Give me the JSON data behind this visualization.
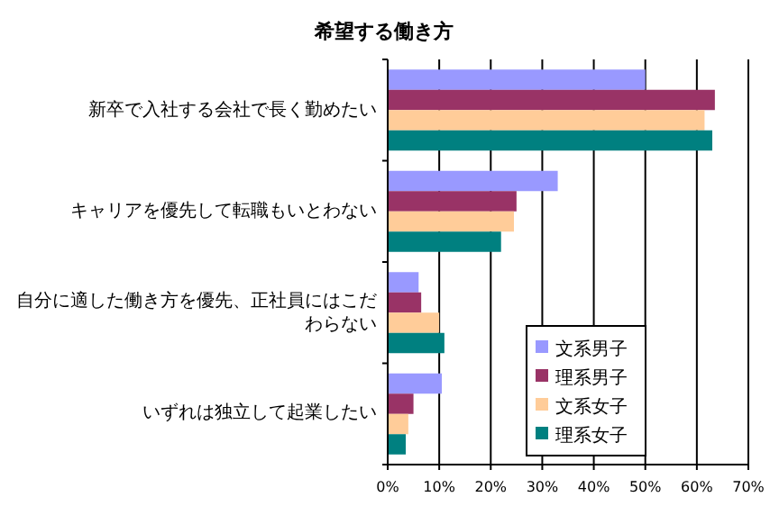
{
  "chart_data": {
    "type": "bar",
    "orientation": "horizontal",
    "title": "希望する働き方",
    "categories": [
      "新卒で入社する会社で長く勤めたい",
      "キャリアを優先して転職もいとわない",
      "自分に適した働き方を優先、正社員にはこだわらない",
      "いずれは独立して起業したい"
    ],
    "series": [
      {
        "name": "文系男子",
        "color": "#9999ff",
        "values": [
          50,
          33,
          6,
          10.5
        ]
      },
      {
        "name": "理系男子",
        "color": "#993366",
        "values": [
          63.5,
          25,
          6.5,
          5
        ]
      },
      {
        "name": "文系女子",
        "color": "#ffcc99",
        "values": [
          61.5,
          24.5,
          10,
          4
        ]
      },
      {
        "name": "理系女子",
        "color": "#008080",
        "values": [
          63,
          22,
          11,
          3.5
        ]
      }
    ],
    "xlim": [
      0,
      70
    ],
    "xticks": [
      {
        "value": 0,
        "label": "0%"
      },
      {
        "value": 10,
        "label": "10%"
      },
      {
        "value": 20,
        "label": "20%"
      },
      {
        "value": 30,
        "label": "30%"
      },
      {
        "value": 40,
        "label": "40%"
      },
      {
        "value": 50,
        "label": "50%"
      },
      {
        "value": 60,
        "label": "60%"
      },
      {
        "value": 70,
        "label": "70%"
      }
    ],
    "grid": "x",
    "legend": "bottom right"
  }
}
